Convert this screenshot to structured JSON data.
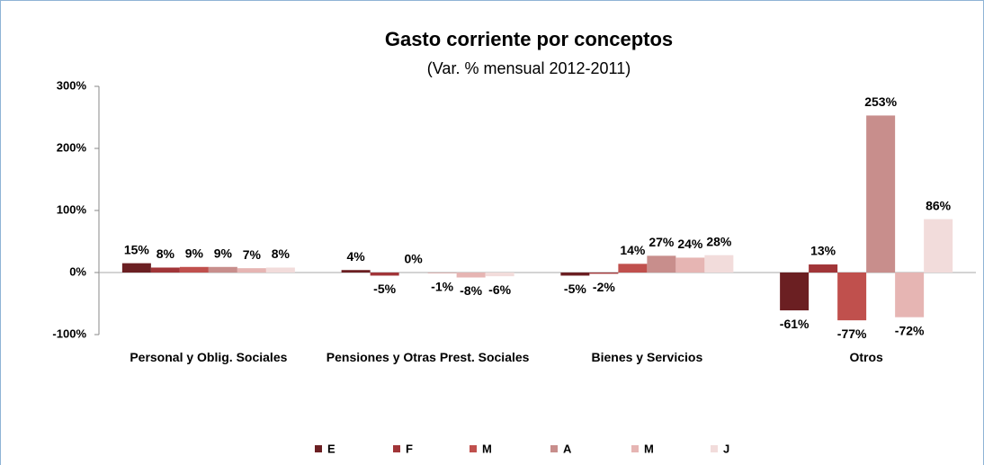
{
  "chart_data": {
    "type": "bar",
    "title": "Gasto corriente por conceptos",
    "subtitle": "(Var. %  mensual 2012-2011)",
    "categories": [
      "Personal y Oblig. Sociales",
      "Pensiones y Otras Prest. Sociales",
      "Bienes y Servicios",
      "Otros"
    ],
    "series": [
      {
        "name": "E",
        "color": "#6b1f22",
        "values": [
          15,
          4,
          -5,
          -61
        ],
        "value_labels": [
          "15%",
          "4%",
          "-5%",
          "-61%"
        ]
      },
      {
        "name": "F",
        "color": "#a13538",
        "values": [
          8,
          -5,
          -2,
          13
        ],
        "value_labels": [
          "8%",
          "-5%",
          "-2%",
          "13%"
        ]
      },
      {
        "name": "M",
        "color": "#c0504d",
        "values": [
          9,
          0,
          14,
          -77
        ],
        "value_labels": [
          "9%",
          "0%",
          "14%",
          "-77%"
        ]
      },
      {
        "name": "A",
        "color": "#c88e8c",
        "values": [
          9,
          -1,
          27,
          253
        ],
        "value_labels": [
          "9%",
          "-1%",
          "27%",
          "253%"
        ]
      },
      {
        "name": "M",
        "color": "#e6b5b3",
        "values": [
          7,
          -8,
          24,
          -72
        ],
        "value_labels": [
          "7%",
          "-8%",
          "24%",
          "-72%"
        ]
      },
      {
        "name": "J",
        "color": "#f2dcdb",
        "values": [
          8,
          -6,
          28,
          86
        ],
        "value_labels": [
          "8%",
          "-6%",
          "28%",
          "86%"
        ]
      }
    ],
    "ylim": [
      -100,
      300
    ],
    "yticks": [
      {
        "value": -100,
        "label": "-100%"
      },
      {
        "value": 0,
        "label": "0%"
      },
      {
        "value": 100,
        "label": "100%"
      },
      {
        "value": 200,
        "label": "200%"
      },
      {
        "value": 300,
        "label": "300%"
      }
    ],
    "grid": false,
    "legend": "bottom"
  }
}
